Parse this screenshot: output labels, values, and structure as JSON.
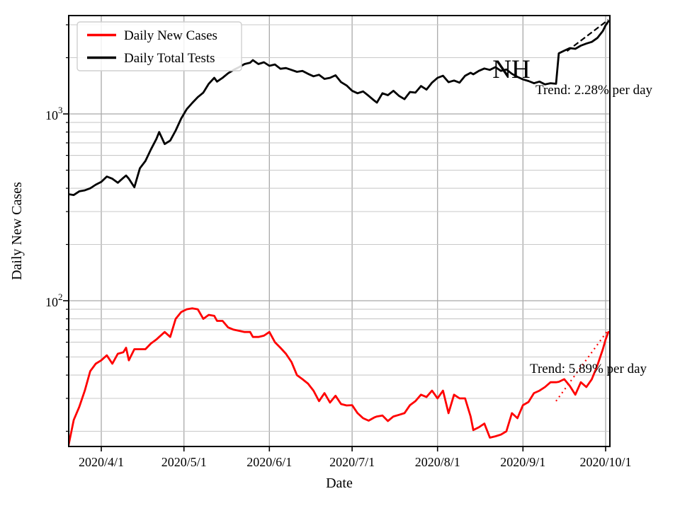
{
  "annotations": {
    "state_label": "NH",
    "tests_trend_label": "Trend: 2.28% per day",
    "cases_trend_label": "Trend: 5.89% per day"
  },
  "legend": {
    "items": [
      {
        "label": "Daily New Cases",
        "color": "#ff0000"
      },
      {
        "label": "Daily Total Tests",
        "color": "#000000"
      }
    ]
  },
  "axes": {
    "xlabel": "Date",
    "ylabel": "Daily New Cases",
    "y_scale": "log",
    "grid": "both",
    "x_ticks": [
      {
        "label": "2020/4/1",
        "date": "4/1"
      },
      {
        "label": "2020/5/1",
        "date": "5/1"
      },
      {
        "label": "2020/6/1",
        "date": "6/1"
      },
      {
        "label": "2020/7/1",
        "date": "7/1"
      },
      {
        "label": "2020/8/1",
        "date": "8/1"
      },
      {
        "label": "2020/9/1",
        "date": "9/1"
      },
      {
        "label": "2020/10/1",
        "date": "10/1"
      }
    ],
    "y_major_ticks": [
      {
        "label_base": "10",
        "label_exp": "3",
        "value": 1000
      },
      {
        "label_base": "10",
        "label_exp": "2",
        "value": 100
      }
    ],
    "y_minor_values": [
      20,
      30,
      40,
      50,
      60,
      70,
      80,
      90,
      200,
      300,
      400,
      500,
      600,
      700,
      800,
      900,
      2000,
      3000
    ],
    "x_range": [
      "2020/3/20",
      "2020/10/2"
    ],
    "y_range": [
      16.6,
      3360
    ]
  },
  "chart_data": {
    "type": "line",
    "title": "",
    "xlabel": "Date",
    "ylabel": "Daily New Cases",
    "x_dates": [
      "3/20",
      "3/22",
      "3/24",
      "3/26",
      "3/28",
      "3/30",
      "4/1",
      "4/3",
      "4/5",
      "4/7",
      "4/9",
      "4/10",
      "4/11",
      "4/13",
      "4/15",
      "4/17",
      "4/19",
      "4/21",
      "4/22",
      "4/24",
      "4/26",
      "4/28",
      "4/30",
      "5/2",
      "5/4",
      "5/6",
      "5/8",
      "5/10",
      "5/12",
      "5/13",
      "5/15",
      "5/17",
      "5/19",
      "5/21",
      "5/23",
      "5/25",
      "5/26",
      "5/28",
      "5/30",
      "6/1",
      "6/3",
      "6/5",
      "6/7",
      "6/9",
      "6/11",
      "6/13",
      "6/15",
      "6/17",
      "6/19",
      "6/21",
      "6/23",
      "6/25",
      "6/27",
      "6/29",
      "7/1",
      "7/3",
      "7/5",
      "7/7",
      "7/9",
      "7/10",
      "7/12",
      "7/14",
      "7/16",
      "7/18",
      "7/20",
      "7/22",
      "7/24",
      "7/26",
      "7/28",
      "7/30",
      "8/1",
      "8/3",
      "8/5",
      "8/7",
      "8/9",
      "8/11",
      "8/13",
      "8/14",
      "8/16",
      "8/18",
      "8/20",
      "8/22",
      "8/24",
      "8/26",
      "8/28",
      "8/30",
      "9/1",
      "9/3",
      "9/5",
      "9/7",
      "9/9",
      "9/11",
      "9/13",
      "9/14",
      "9/16",
      "9/18",
      "9/20",
      "9/22",
      "9/24",
      "9/26",
      "9/28",
      "9/30",
      "10/1",
      "10/2"
    ],
    "series": [
      {
        "name": "Daily New Cases",
        "color": "#ff0000",
        "values": [
          16.5,
          23,
          27,
          33,
          42,
          46,
          48,
          51,
          46,
          52,
          53,
          56,
          48,
          55,
          55,
          55,
          59,
          62,
          64,
          68,
          64,
          80,
          87,
          90,
          91,
          90,
          80,
          84,
          83,
          78,
          78,
          72,
          70,
          69,
          68,
          68,
          64,
          64,
          65,
          68,
          60,
          56,
          52,
          47,
          40,
          38,
          36,
          33,
          29,
          32,
          28.5,
          31,
          28,
          27.5,
          27.6,
          25,
          23.5,
          22.8,
          23.7,
          24,
          24.3,
          22.7,
          24,
          24.5,
          25,
          27.6,
          29,
          31.4,
          30.5,
          33,
          30,
          33,
          25,
          31.4,
          30,
          30,
          24,
          20.3,
          21,
          22,
          18.5,
          18.8,
          19.2,
          20,
          25,
          23.5,
          27.6,
          28.7,
          32,
          33,
          34.5,
          36.6,
          36.6,
          36.8,
          38,
          35,
          31.4,
          36.6,
          34.5,
          38,
          45,
          55,
          62,
          68
        ]
      },
      {
        "name": "Daily Total Tests",
        "color": "#000000",
        "values": [
          372,
          368,
          385,
          390,
          400,
          418,
          433,
          462,
          450,
          428,
          455,
          468,
          450,
          405,
          512,
          560,
          645,
          735,
          800,
          690,
          720,
          815,
          945,
          1060,
          1145,
          1230,
          1300,
          1450,
          1560,
          1490,
          1560,
          1650,
          1720,
          1780,
          1850,
          1880,
          1940,
          1850,
          1890,
          1810,
          1840,
          1745,
          1760,
          1720,
          1680,
          1700,
          1640,
          1590,
          1620,
          1540,
          1560,
          1610,
          1480,
          1420,
          1330,
          1290,
          1320,
          1250,
          1180,
          1150,
          1290,
          1260,
          1330,
          1250,
          1200,
          1310,
          1300,
          1410,
          1350,
          1470,
          1560,
          1600,
          1480,
          1510,
          1470,
          1600,
          1660,
          1630,
          1700,
          1750,
          1720,
          1780,
          1700,
          1730,
          1640,
          1580,
          1530,
          1500,
          1460,
          1490,
          1440,
          1460,
          1450,
          2110,
          2180,
          2250,
          2230,
          2320,
          2380,
          2430,
          2550,
          2780,
          2980,
          3130
        ]
      }
    ],
    "trend_lines": [
      {
        "name": "Daily New Cases trend",
        "color": "#ff0000",
        "percent_per_day": 5.89,
        "label": "Trend: 5.89% per day",
        "dates": [
          "9/13",
          "10/2"
        ],
        "values": [
          29,
          70
        ],
        "dash": "2 5"
      },
      {
        "name": "Daily Total Tests trend",
        "color": "#000000",
        "percent_per_day": 2.28,
        "label": "Trend: 2.28% per day",
        "dates": [
          "9/17",
          "10/2"
        ],
        "values": [
          2170,
          3190
        ],
        "dash": "8 4"
      }
    ]
  }
}
